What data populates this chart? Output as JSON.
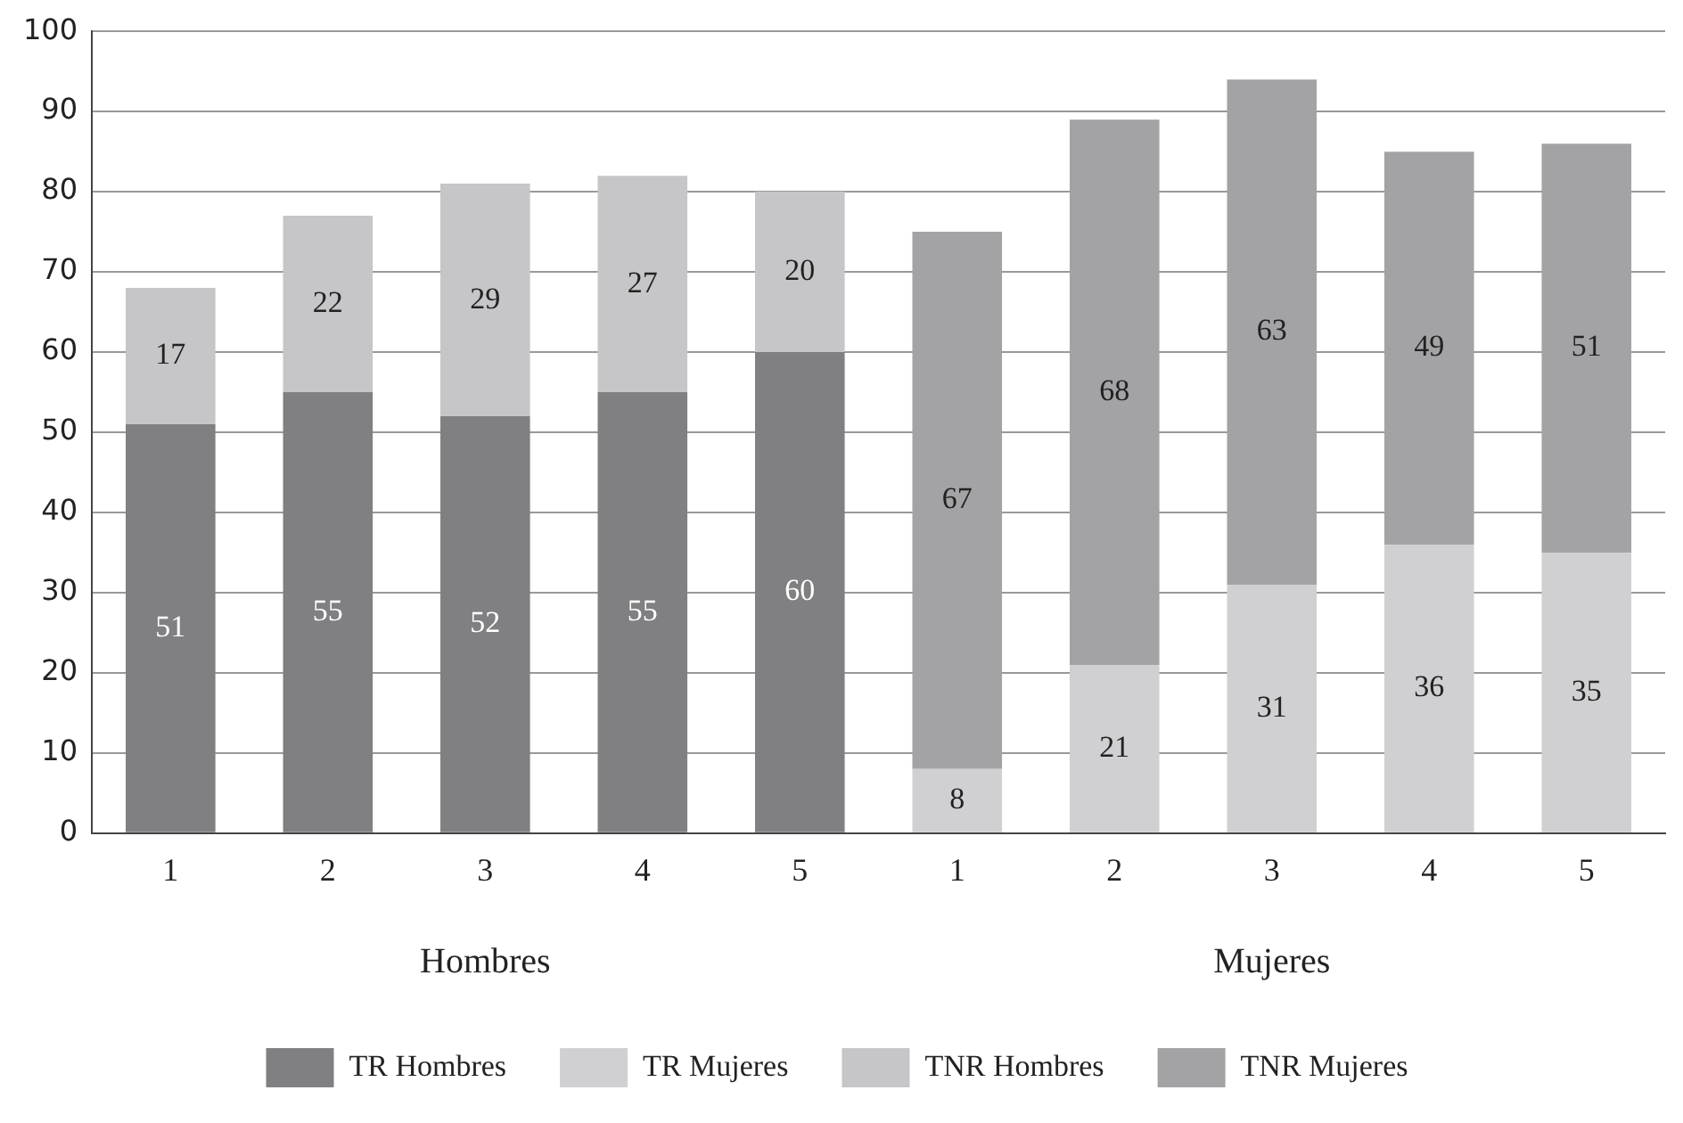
{
  "chart_data": {
    "type": "bar",
    "stacked": true,
    "categories": [
      "1",
      "2",
      "3",
      "4",
      "5",
      "1",
      "2",
      "3",
      "4",
      "5"
    ],
    "series": [
      {
        "name": "TR Hombres",
        "color": "#808083",
        "values": [
          51,
          55,
          52,
          55,
          60,
          null,
          null,
          null,
          null,
          null
        ]
      },
      {
        "name": "TR Mujeres",
        "color": "#d0d0d2",
        "values": [
          null,
          null,
          null,
          null,
          null,
          8,
          21,
          31,
          36,
          35
        ]
      },
      {
        "name": "TNR Hombres",
        "color": "#c6c6c8",
        "values": [
          17,
          22,
          29,
          27,
          20,
          null,
          null,
          null,
          null,
          null
        ]
      },
      {
        "name": "TNR Mujeres",
        "color": "#a3a3a6",
        "values": [
          null,
          null,
          null,
          null,
          null,
          67,
          68,
          63,
          49,
          51
        ]
      }
    ],
    "ylim": [
      0,
      100
    ],
    "yticks": [
      0,
      10,
      20,
      30,
      40,
      50,
      60,
      70,
      80,
      90,
      100
    ],
    "grid": "y",
    "legend": "bottom",
    "data_labels": true,
    "annotations": [
      "Hombres",
      "Mujeres"
    ]
  }
}
